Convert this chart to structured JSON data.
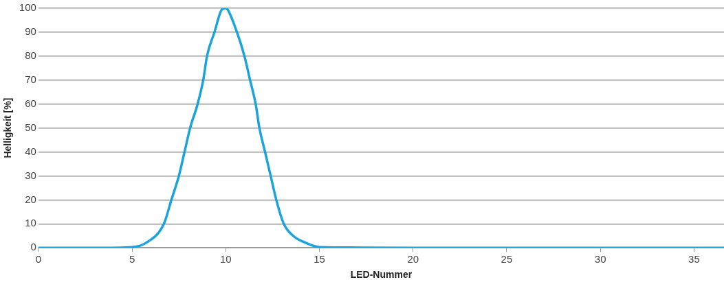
{
  "chart_data": {
    "type": "line",
    "xlabel": "LED-Nummer",
    "ylabel": "Helligkeit [%]",
    "x": [
      0,
      3,
      5,
      5.8,
      6.7,
      7.1,
      7.5,
      7.8,
      8.1,
      8.5,
      8.8,
      9.0,
      9.4,
      9.8,
      10.0,
      10.1,
      10.6,
      11.0,
      11.3,
      11.6,
      11.8,
      12.1,
      12.4,
      12.7,
      13.1,
      13.6,
      14.2,
      15,
      20,
      36.6
    ],
    "series": [
      {
        "color": "#1aa3dc",
        "values": [
          0,
          0,
          0.3,
          2.3,
          10,
          20,
          30,
          40,
          50,
          60,
          70,
          80,
          90,
          99.5,
          100,
          99.5,
          90,
          80,
          70,
          60,
          50,
          40,
          30,
          20,
          10,
          5,
          2.3,
          0.3,
          0,
          0
        ]
      }
    ],
    "xlim": [
      0,
      36.6
    ],
    "xticks": [
      0,
      5,
      10,
      15,
      20,
      25,
      30,
      35
    ],
    "ylim": [
      0,
      100
    ],
    "yticks": [
      0,
      10,
      20,
      30,
      40,
      50,
      60,
      70,
      80,
      90,
      100
    ],
    "grid": "y",
    "legend": false,
    "marker": "none",
    "line_style": "solid"
  }
}
